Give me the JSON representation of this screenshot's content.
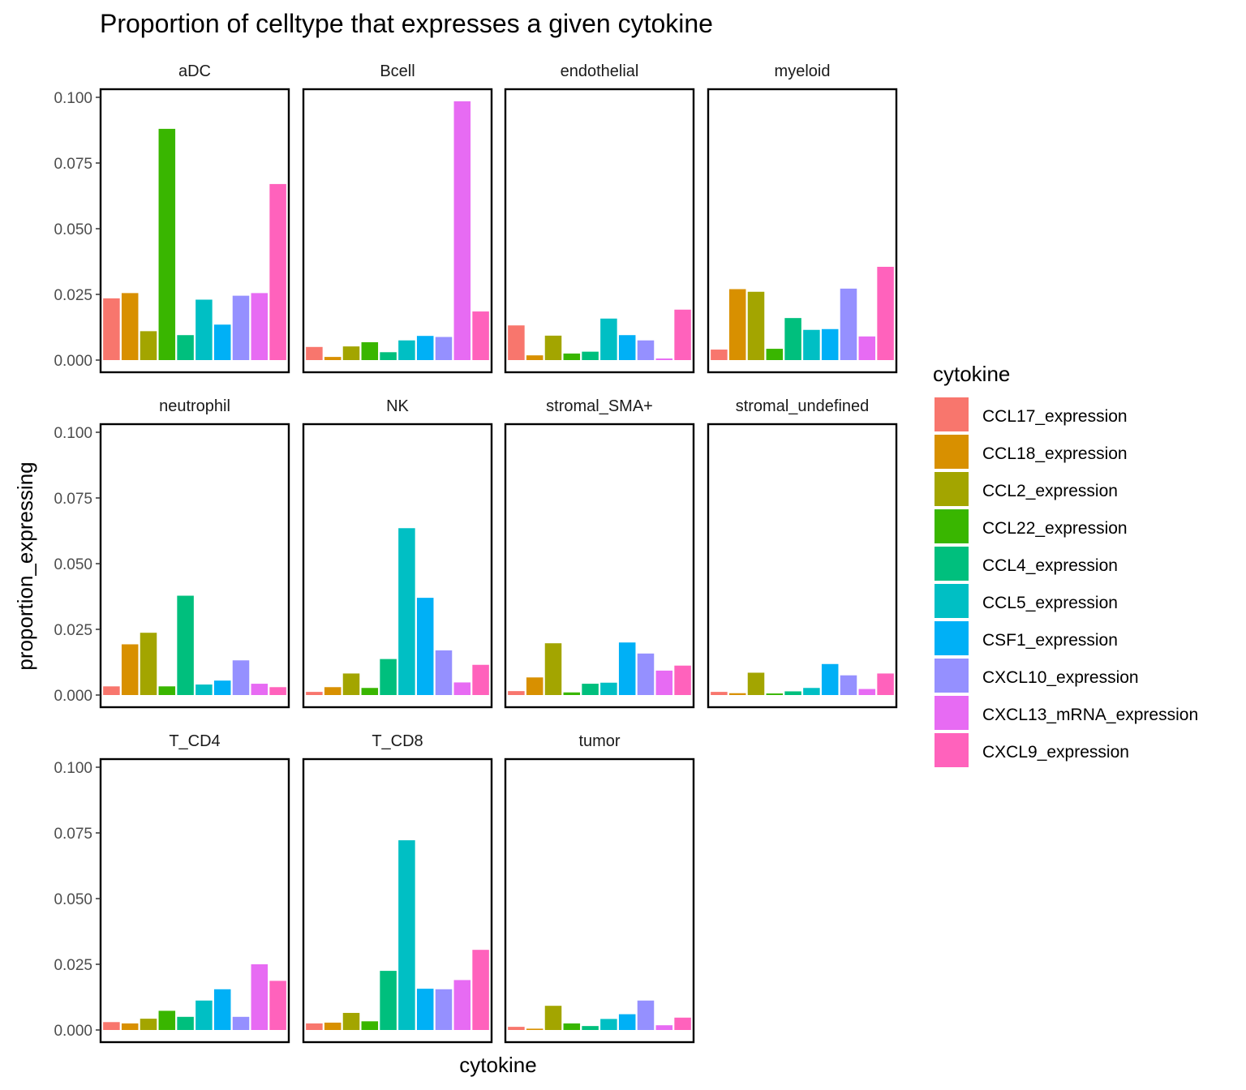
{
  "chart_data": {
    "type": "bar",
    "title": "Proportion of celltype that expresses a given cytokine",
    "xlabel": "cytokine",
    "ylabel": "proportion_expressing",
    "ylim": [
      0,
      0.1
    ],
    "yticks": [
      "0.000",
      "0.025",
      "0.050",
      "0.075",
      "0.100"
    ],
    "ytick_values": [
      0,
      0.025,
      0.05,
      0.075,
      0.1
    ],
    "grid": false,
    "legend": {
      "title": "cytokine",
      "position": "right",
      "entries": [
        {
          "label": "CCL17_expression",
          "color": "#F8766D"
        },
        {
          "label": "CCL18_expression",
          "color": "#D89000"
        },
        {
          "label": "CCL2_expression",
          "color": "#A3A500"
        },
        {
          "label": "CCL22_expression",
          "color": "#39B600"
        },
        {
          "label": "CCL4_expression",
          "color": "#00BF7D"
        },
        {
          "label": "CCL5_expression",
          "color": "#00BFC4"
        },
        {
          "label": "CSF1_expression",
          "color": "#00B0F6"
        },
        {
          "label": "CXCL10_expression",
          "color": "#9590FF"
        },
        {
          "label": "CXCL13_mRNA_expression",
          "color": "#E76BF3"
        },
        {
          "label": "CXCL9_expression",
          "color": "#FF62BC"
        }
      ]
    },
    "facets": [
      {
        "name": "aDC",
        "values": [
          0.0235,
          0.0255,
          0.011,
          0.088,
          0.0095,
          0.023,
          0.0135,
          0.0245,
          0.0255,
          0.067
        ]
      },
      {
        "name": "Bcell",
        "values": [
          0.005,
          0.0012,
          0.0052,
          0.0068,
          0.003,
          0.0075,
          0.0092,
          0.0088,
          0.0985,
          0.0185
        ]
      },
      {
        "name": "endothelial",
        "values": [
          0.0132,
          0.0018,
          0.0093,
          0.0025,
          0.0032,
          0.0158,
          0.0095,
          0.0075,
          0.0006,
          0.0192
        ]
      },
      {
        "name": "myeloid",
        "values": [
          0.004,
          0.027,
          0.026,
          0.0043,
          0.016,
          0.0115,
          0.0118,
          0.0272,
          0.009,
          0.0355
        ]
      },
      {
        "name": "neutrophil",
        "values": [
          0.0033,
          0.0193,
          0.0237,
          0.0033,
          0.0378,
          0.004,
          0.0055,
          0.0132,
          0.0043,
          0.003
        ]
      },
      {
        "name": "NK",
        "values": [
          0.0012,
          0.003,
          0.0082,
          0.0027,
          0.0137,
          0.0635,
          0.037,
          0.017,
          0.0048,
          0.0115
        ]
      },
      {
        "name": "stromal_SMA+",
        "values": [
          0.0015,
          0.0067,
          0.0197,
          0.001,
          0.0043,
          0.0047,
          0.02,
          0.0158,
          0.0093,
          0.0112
        ]
      },
      {
        "name": "stromal_undefined",
        "values": [
          0.0012,
          0.0007,
          0.0085,
          0.0006,
          0.0014,
          0.0027,
          0.0118,
          0.0075,
          0.0023,
          0.0082
        ]
      },
      {
        "name": "T_CD4",
        "values": [
          0.003,
          0.0025,
          0.0043,
          0.0073,
          0.005,
          0.0112,
          0.0155,
          0.005,
          0.025,
          0.0187
        ]
      },
      {
        "name": "T_CD8",
        "values": [
          0.0025,
          0.0028,
          0.0065,
          0.0033,
          0.0225,
          0.0722,
          0.0157,
          0.0155,
          0.019,
          0.0305
        ]
      },
      {
        "name": "tumor",
        "values": [
          0.0012,
          0.0005,
          0.0092,
          0.0025,
          0.0015,
          0.0042,
          0.006,
          0.0112,
          0.0018,
          0.0047
        ]
      }
    ]
  }
}
